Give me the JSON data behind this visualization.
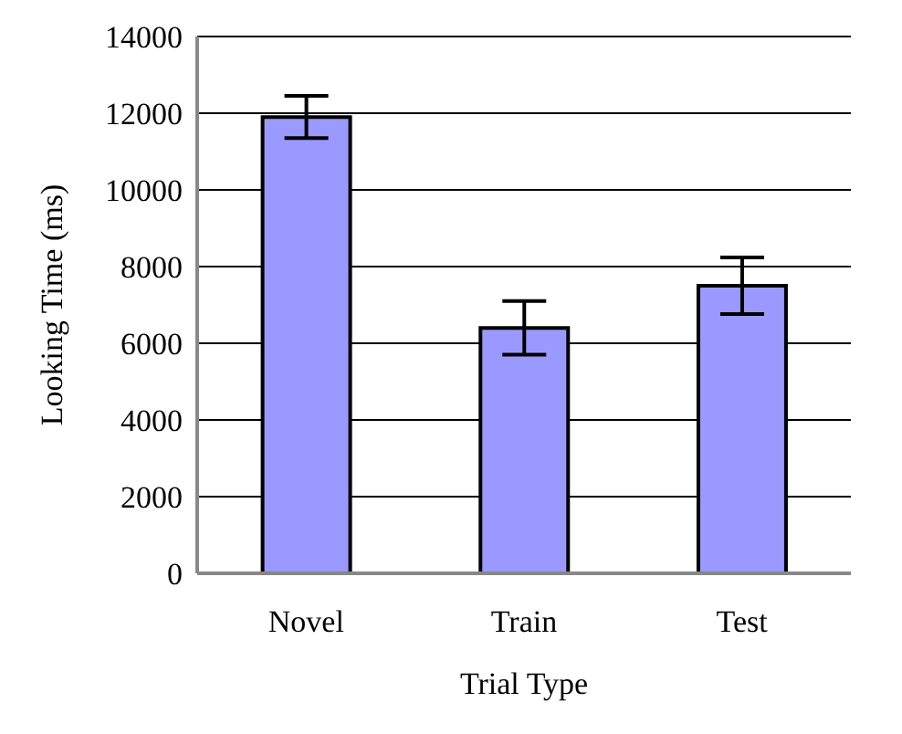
{
  "chart_data": {
    "type": "bar",
    "xlabel": "Trial Type",
    "ylabel": "Looking Time (ms)",
    "categories": [
      "Novel",
      "Train",
      "Test"
    ],
    "values": [
      11900,
      6400,
      7500
    ],
    "errors": [
      550,
      700,
      740
    ],
    "color": "#9999ff",
    "ylim": [
      0,
      14000
    ],
    "yticks": [
      0,
      2000,
      4000,
      6000,
      8000,
      10000,
      12000,
      14000
    ],
    "grid": "y"
  }
}
